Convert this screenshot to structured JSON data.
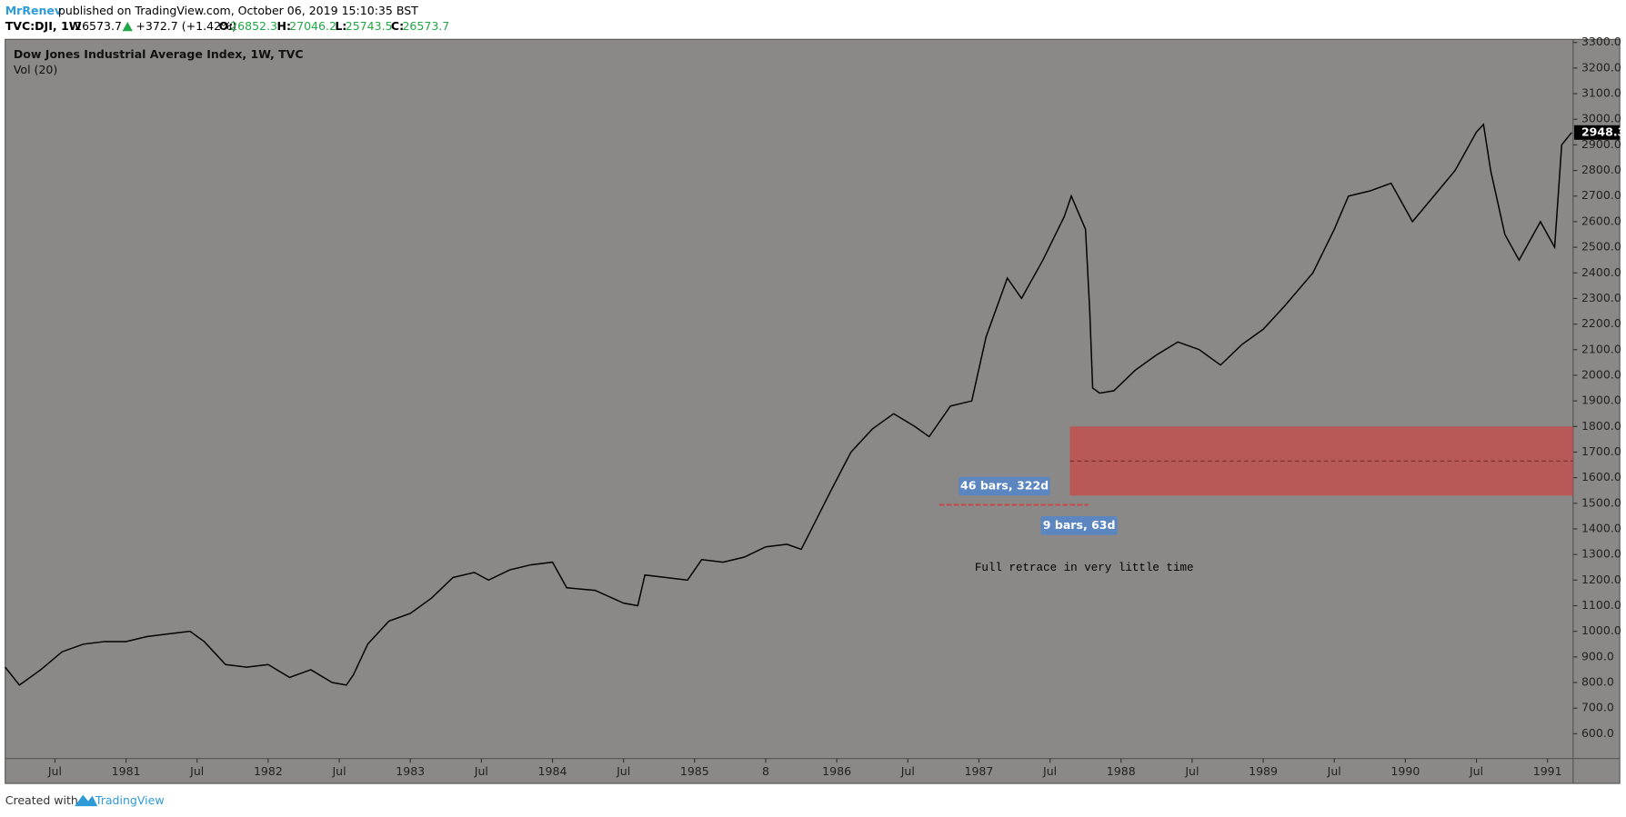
{
  "header": {
    "author": "MrRenev",
    "published": "published on TradingView.com, October 06, 2019 15:10:35 BST",
    "symbol": "TVC:DJI, 1W",
    "last": "26573.7",
    "change": "+372.7 (+1.42%)",
    "o_label": "O:",
    "o": "26852.3",
    "h_label": "H:",
    "h": "27046.2",
    "l_label": "L:",
    "l": "25743.5",
    "c_label": "C:",
    "c": "26573.7"
  },
  "chart_data": {
    "type": "line",
    "title": "Dow Jones Industrial Average Index, 1W, TVC",
    "subtitle": "Vol (20)",
    "color": "#000000",
    "background": "#8a8988",
    "x": [
      1980.15,
      1980.25,
      1980.4,
      1980.55,
      1980.7,
      1980.85,
      1981.0,
      1981.15,
      1981.3,
      1981.45,
      1981.55,
      1981.7,
      1981.85,
      1982.0,
      1982.15,
      1982.3,
      1982.45,
      1982.55,
      1982.6,
      1982.7,
      1982.85,
      1983.0,
      1983.15,
      1983.3,
      1983.45,
      1983.55,
      1983.7,
      1983.85,
      1984.0,
      1984.1,
      1984.3,
      1984.5,
      1984.6,
      1984.65,
      1984.8,
      1984.95,
      1985.05,
      1985.2,
      1985.35,
      1985.5,
      1985.65,
      1985.75,
      1985.85,
      1985.95,
      1986.1,
      1986.25,
      1986.4,
      1986.55,
      1986.65,
      1986.8,
      1986.95,
      1987.05,
      1987.2,
      1987.3,
      1987.45,
      1987.6,
      1987.65,
      1987.75,
      1987.78,
      1987.8,
      1987.85,
      1987.95,
      1988.1,
      1988.25,
      1988.4,
      1988.55,
      1988.7,
      1988.85,
      1989.0,
      1989.15,
      1989.35,
      1989.5,
      1989.6,
      1989.75,
      1989.9,
      1990.05,
      1990.2,
      1990.35,
      1990.5,
      1990.55,
      1990.6,
      1990.7,
      1990.8,
      1990.95,
      1991.05,
      1991.1,
      1991.17
    ],
    "values": [
      860,
      790,
      850,
      920,
      950,
      960,
      960,
      980,
      990,
      1000,
      960,
      870,
      860,
      870,
      820,
      850,
      800,
      790,
      830,
      950,
      1040,
      1070,
      1130,
      1210,
      1230,
      1200,
      1240,
      1260,
      1270,
      1170,
      1160,
      1110,
      1100,
      1220,
      1210,
      1200,
      1280,
      1270,
      1290,
      1330,
      1340,
      1320,
      1430,
      1540,
      1700,
      1790,
      1850,
      1800,
      1760,
      1880,
      1900,
      2150,
      2380,
      2300,
      2450,
      2620,
      2700,
      2570,
      2250,
      1950,
      1930,
      1940,
      2020,
      2080,
      2130,
      2100,
      2040,
      2120,
      2180,
      2270,
      2400,
      2570,
      2700,
      2720,
      2750,
      2600,
      2700,
      2800,
      2950,
      2980,
      2800,
      2550,
      2450,
      2600,
      2500,
      2900,
      2948.3
    ],
    "xlim": [
      1980.15,
      1991.18
    ],
    "ylim": [
      503,
      3312
    ],
    "xticks": [
      {
        "value": 1980.5,
        "label": "Jul"
      },
      1981,
      {
        "value": 1981.5,
        "label": "Jul"
      },
      1982,
      {
        "value": 1982.5,
        "label": "Jul"
      },
      1983,
      {
        "value": 1983.5,
        "label": "Jul"
      },
      1984,
      {
        "value": 1984.5,
        "label": "Jul"
      },
      1985,
      {
        "value": 1985.5,
        "label": "8"
      },
      1986,
      {
        "value": 1986.5,
        "label": "Jul"
      },
      1987,
      {
        "value": 1987.5,
        "label": "Jul"
      },
      1988,
      {
        "value": 1988.5,
        "label": "Jul"
      },
      1989,
      {
        "value": 1989.5,
        "label": "Jul"
      },
      1990,
      {
        "value": 1990.5,
        "label": "Jul"
      },
      1991
    ],
    "yticks": [
      {
        "value": 600,
        "label": "600.0"
      },
      {
        "value": 700,
        "label": "700.0"
      },
      {
        "value": 800,
        "label": "800.0"
      },
      {
        "value": 900,
        "label": "900.0"
      },
      {
        "value": 1000,
        "label": "1000.0"
      },
      {
        "value": 1100,
        "label": "1100.0"
      },
      {
        "value": 1200,
        "label": "1200.0"
      },
      {
        "value": 1300,
        "label": "1300.0"
      },
      {
        "value": 1400,
        "label": "1400.0"
      },
      {
        "value": 1500,
        "label": "1500.0"
      },
      {
        "value": 1600,
        "label": "1600.0"
      },
      {
        "value": 1700,
        "label": "1700.0"
      },
      {
        "value": 1800,
        "label": "1800.0"
      },
      {
        "value": 1900,
        "label": "1900.0"
      },
      {
        "value": 2000,
        "label": "2000.0"
      },
      {
        "value": 2100,
        "label": "2100.0"
      },
      {
        "value": 2200,
        "label": "2200.0"
      },
      {
        "value": 2300,
        "label": "2300.0"
      },
      {
        "value": 2400,
        "label": "2400.0"
      },
      {
        "value": 2500,
        "label": "2500.0"
      },
      {
        "value": 2600,
        "label": "2600.0"
      },
      {
        "value": 2700,
        "label": "2700.0"
      },
      {
        "value": 2800,
        "label": "2800.0"
      },
      {
        "value": 2900,
        "label": "2900.0"
      },
      {
        "value": 3000,
        "label": "3000.0"
      },
      {
        "value": 3100,
        "label": "3100.0"
      },
      {
        "value": 3200,
        "label": "3200.0"
      },
      {
        "value": 3300,
        "label": "3300.0"
      }
    ],
    "zone": {
      "x0": 1987.64,
      "y0": 1530,
      "y1": 1800,
      "color": "#c0504f"
    },
    "measures": [
      {
        "label": "46 bars, 322d",
        "x0": 1986.72,
        "x1": 1987.64,
        "y": 1494
      },
      {
        "label": "9 bars, 63d",
        "x0": 1987.64,
        "x1": 1987.77,
        "y": 1494
      }
    ],
    "annotation": "Full retrace in very little time"
  },
  "footer": {
    "created": "Created with",
    "brand": "TradingView"
  }
}
